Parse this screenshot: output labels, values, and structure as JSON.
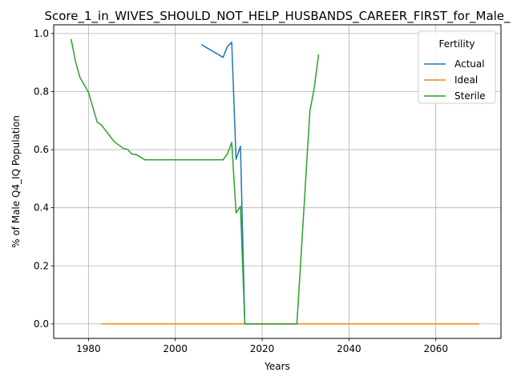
{
  "chart_data": {
    "type": "line",
    "title": "Score_1_in_WIVES_SHOULD_NOT_HELP_HUSBANDS_CAREER_FIRST_for_Male_",
    "xlabel": "Years",
    "ylabel": "% of Male Q4_IQ Population",
    "xlim": [
      1972,
      2075
    ],
    "ylim": [
      -0.05,
      1.03
    ],
    "xticks": [
      1980,
      2000,
      2020,
      2040,
      2060
    ],
    "yticks": [
      0.0,
      0.2,
      0.4,
      0.6,
      0.8,
      1.0
    ],
    "grid": true,
    "legend": {
      "title": "Fertility",
      "placement": "upper right"
    },
    "series": [
      {
        "name": "Actual",
        "color": "#1f77b4",
        "x": [
          2006,
          2011,
          2012,
          2013,
          2014,
          2015,
          2016,
          2028
        ],
        "y": [
          0.962,
          0.918,
          0.955,
          0.97,
          0.567,
          0.612,
          0.0,
          0.0
        ]
      },
      {
        "name": "Ideal",
        "color": "#ff7f0e",
        "x": [
          1983,
          2070
        ],
        "y": [
          0.0,
          0.0
        ]
      },
      {
        "name": "Sterile",
        "color": "#2ca02c",
        "x": [
          1976,
          1977,
          1978,
          1980,
          1982,
          1983,
          1984,
          1986,
          1988,
          1989,
          1990,
          1991,
          1993,
          2000,
          2011,
          2012,
          2013,
          2014,
          2015,
          2016,
          2028,
          2031,
          2032,
          2033
        ],
        "y": [
          0.981,
          0.905,
          0.85,
          0.798,
          0.695,
          0.685,
          0.665,
          0.627,
          0.605,
          0.601,
          0.585,
          0.583,
          0.565,
          0.565,
          0.565,
          0.585,
          0.625,
          0.382,
          0.405,
          0.0,
          0.0,
          0.733,
          0.812,
          0.928
        ]
      }
    ]
  }
}
